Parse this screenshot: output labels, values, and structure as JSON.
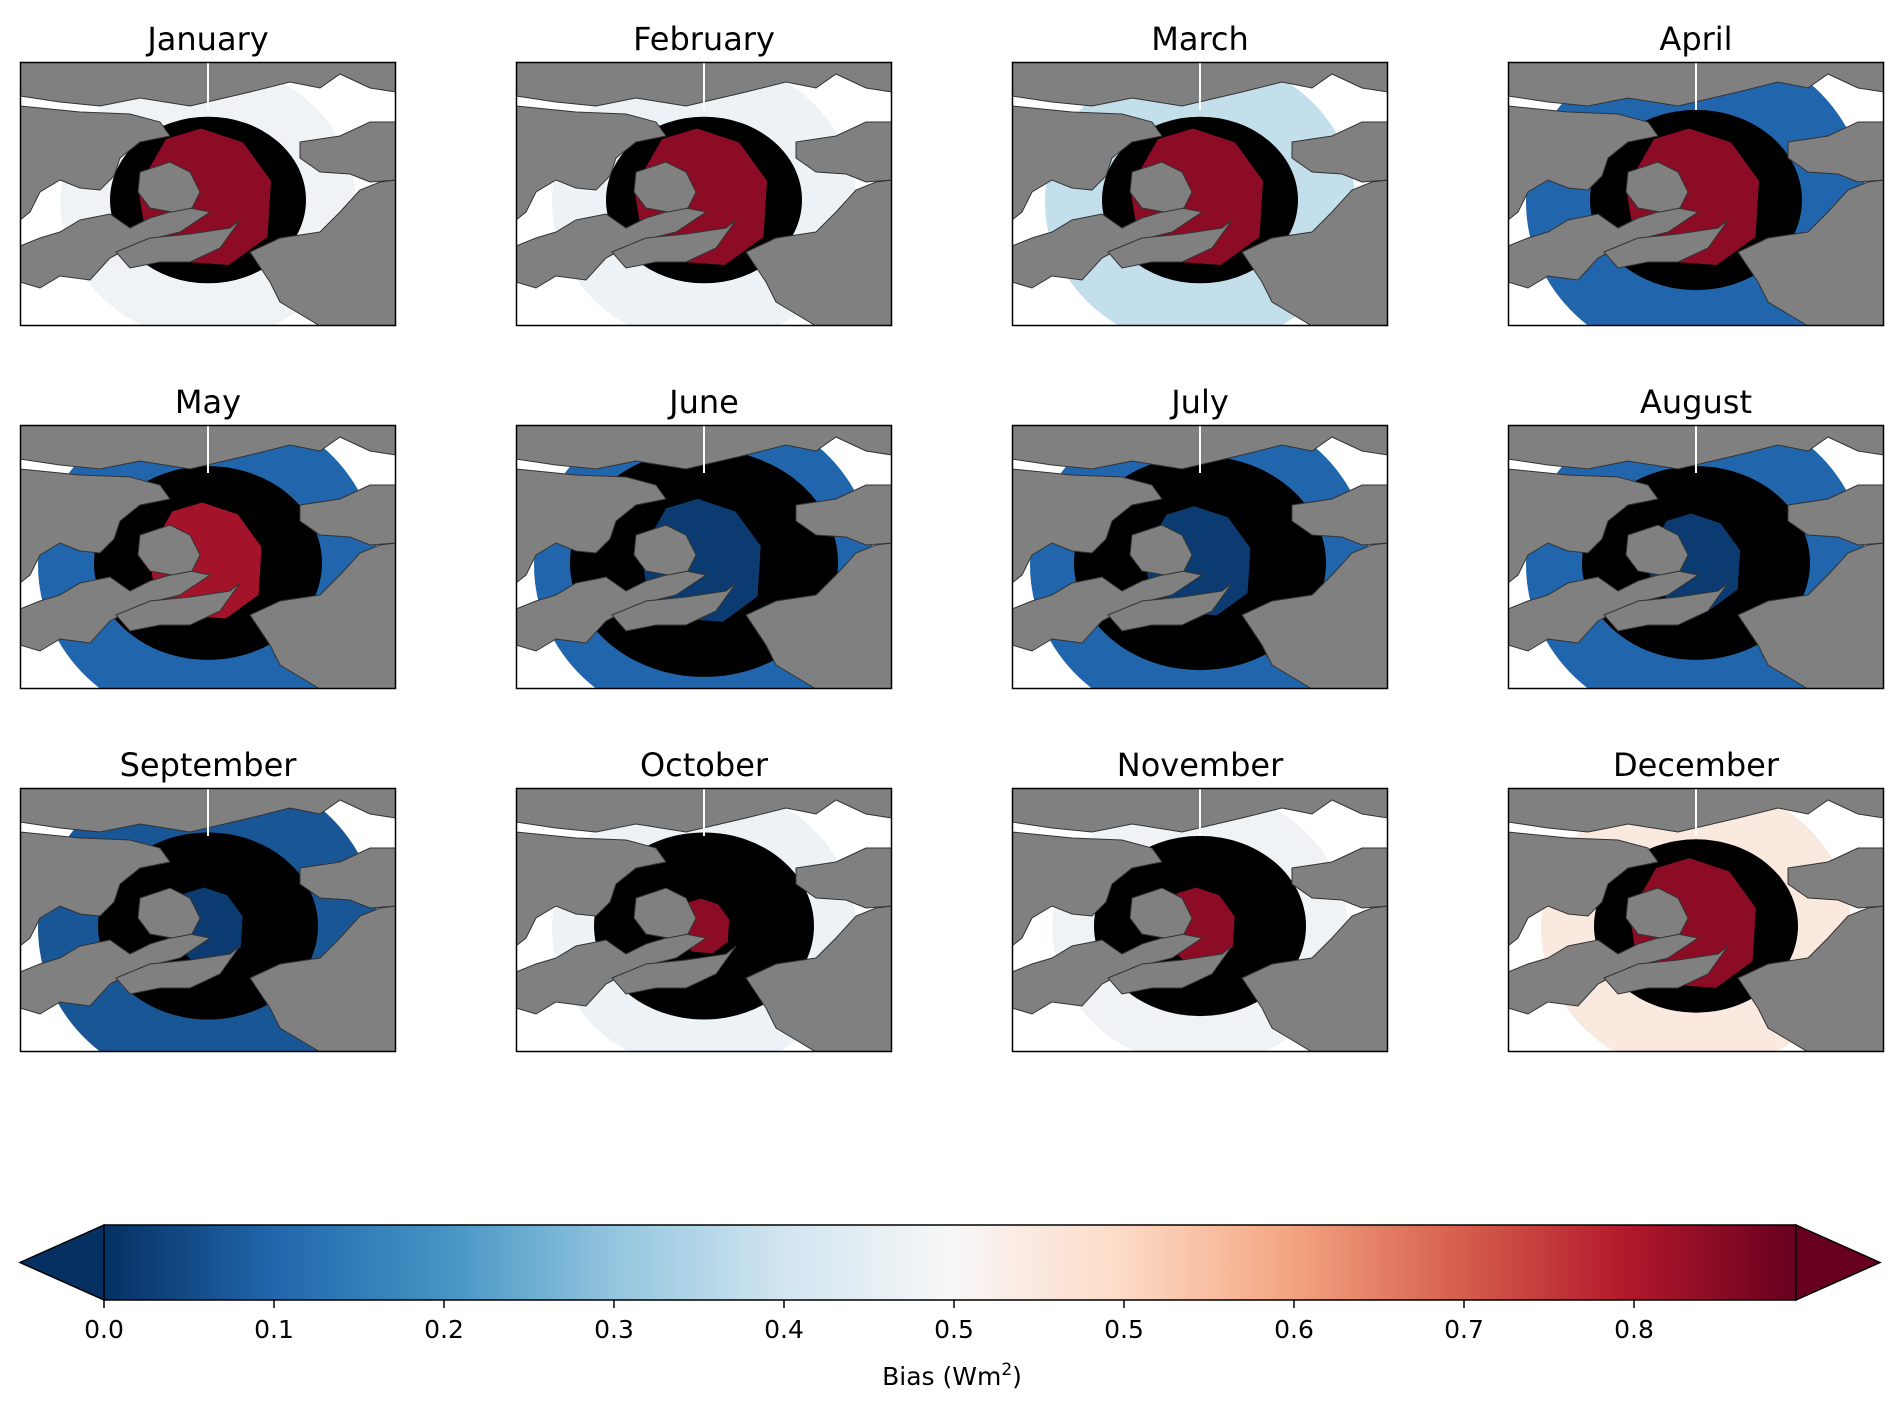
{
  "chart_data": {
    "type": "heatmap",
    "description_of_panels": "12 polar-stereographic Arctic map panels, one per month",
    "panels": [
      {
        "title": "January",
        "ocean_value": 0.48,
        "central_value": 0.95,
        "central_size": 1.0,
        "black_fraction": 0.35,
        "outer_extent": 0.85
      },
      {
        "title": "February",
        "ocean_value": 0.47,
        "central_value": 0.95,
        "central_size": 1.0,
        "black_fraction": 0.35,
        "outer_extent": 0.88
      },
      {
        "title": "March",
        "ocean_value": 0.38,
        "central_value": 0.95,
        "central_size": 1.0,
        "black_fraction": 0.35,
        "outer_extent": 0.9
      },
      {
        "title": "April",
        "ocean_value": 0.1,
        "central_value": 0.95,
        "central_size": 1.0,
        "black_fraction": 0.45,
        "outer_extent": 1.0
      },
      {
        "title": "May",
        "ocean_value": 0.1,
        "central_value": 0.92,
        "central_size": 0.85,
        "black_fraction": 0.55,
        "outer_extent": 1.0
      },
      {
        "title": "June",
        "ocean_value": 0.1,
        "central_value": 0.02,
        "central_size": 0.9,
        "black_fraction": 0.8,
        "outer_extent": 1.0
      },
      {
        "title": "July",
        "ocean_value": 0.1,
        "central_value": 0.02,
        "central_size": 0.8,
        "black_fraction": 0.7,
        "outer_extent": 1.0
      },
      {
        "title": "August",
        "ocean_value": 0.1,
        "central_value": 0.02,
        "central_size": 0.7,
        "black_fraction": 0.55,
        "outer_extent": 1.0
      },
      {
        "title": "September",
        "ocean_value": 0.07,
        "central_value": 0.02,
        "central_size": 0.55,
        "black_fraction": 0.5,
        "outer_extent": 1.0
      },
      {
        "title": "October",
        "ocean_value": 0.47,
        "central_value": 0.95,
        "central_size": 0.4,
        "black_fraction": 0.5,
        "outer_extent": 0.88
      },
      {
        "title": "November",
        "ocean_value": 0.48,
        "central_value": 0.95,
        "central_size": 0.55,
        "black_fraction": 0.45,
        "outer_extent": 0.85
      },
      {
        "title": "December",
        "ocean_value": 0.55,
        "central_value": 0.95,
        "central_size": 0.95,
        "black_fraction": 0.4,
        "outer_extent": 0.9
      }
    ],
    "colorbar": {
      "colormap": "RdBu_r",
      "extend": "both",
      "tick_labels": [
        "0.0",
        "0.1",
        "0.2",
        "0.3",
        "0.4",
        "0.5",
        "0.5",
        "0.6",
        "0.7",
        "0.8"
      ],
      "label_text": "Bias (Wm",
      "label_superscript": "2",
      "label_close": ")"
    },
    "colors": {
      "land": "#808080",
      "outside_map": "#ffffff",
      "unvalid": "#000000"
    }
  }
}
